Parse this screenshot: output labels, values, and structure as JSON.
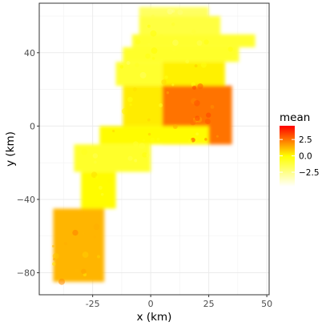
{
  "chart_data": {
    "type": "heatmap",
    "title": "",
    "xlabel": "x (km)",
    "ylabel": "y (km)",
    "xlim": [
      -48,
      51
    ],
    "ylim": [
      -92,
      67
    ],
    "x_ticks": [
      -25,
      0,
      25,
      50
    ],
    "y_ticks": [
      -80,
      -40,
      0,
      40
    ],
    "x_tick_labels": [
      "-25",
      "0",
      "25",
      "50"
    ],
    "y_tick_labels": [
      "−80",
      "−40",
      "0",
      "40"
    ],
    "grid": true,
    "theme": "bw",
    "legend": {
      "title": "mean",
      "position": "right",
      "range": [
        -4.7,
        4.6
      ],
      "breaks": [
        2.5,
        0.0,
        -2.5
      ],
      "break_labels": [
        "2.5",
        "0.0",
        "−2.5"
      ],
      "low_color": "#ffffff",
      "mid_color": "#ffff00",
      "high_color": "#ff0000"
    },
    "field_description": "Survey area heatmap of mean values: mostly yellow in the north (y > 35 km) and the central corridor, orange to red in the eastern block around x 5–35 km, y −10 to 25 km, and orange in the southern lobe around x −40 to −20 km, y −85 to −45 km.",
    "regions": [
      {
        "name": "north-tip",
        "x": [
          -5,
          25
        ],
        "y": [
          60,
          65
        ],
        "level": -1.8
      },
      {
        "name": "north-band-1",
        "x": [
          -5,
          30
        ],
        "y": [
          50,
          60
        ],
        "level": -1.2
      },
      {
        "name": "north-band-2",
        "x": [
          -8,
          45
        ],
        "y": [
          43,
          50
        ],
        "level": -0.9
      },
      {
        "name": "north-band-3",
        "x": [
          -12,
          38
        ],
        "y": [
          35,
          43
        ],
        "level": -0.8
      },
      {
        "name": "upper-mid-west",
        "x": [
          -15,
          5
        ],
        "y": [
          22,
          35
        ],
        "level": -0.9
      },
      {
        "name": "upper-mid-east",
        "x": [
          5,
          32
        ],
        "y": [
          22,
          35
        ],
        "level": 0.2
      },
      {
        "name": "hot-core",
        "x": [
          5,
          35
        ],
        "y": [
          -10,
          22
        ],
        "level": 2.5
      },
      {
        "name": "mid-west",
        "x": [
          -12,
          5
        ],
        "y": [
          0,
          22
        ],
        "level": 0.3
      },
      {
        "name": "mid-lower",
        "x": [
          -22,
          25
        ],
        "y": [
          -10,
          0
        ],
        "level": 0.0
      },
      {
        "name": "corridor-upper",
        "x": [
          -33,
          0
        ],
        "y": [
          -25,
          -10
        ],
        "level": -0.8
      },
      {
        "name": "corridor-lower",
        "x": [
          -30,
          -15
        ],
        "y": [
          -45,
          -25
        ],
        "level": 0.0
      },
      {
        "name": "south-lobe",
        "x": [
          -42,
          -20
        ],
        "y": [
          -85,
          -45
        ],
        "level": 1.3
      }
    ]
  }
}
